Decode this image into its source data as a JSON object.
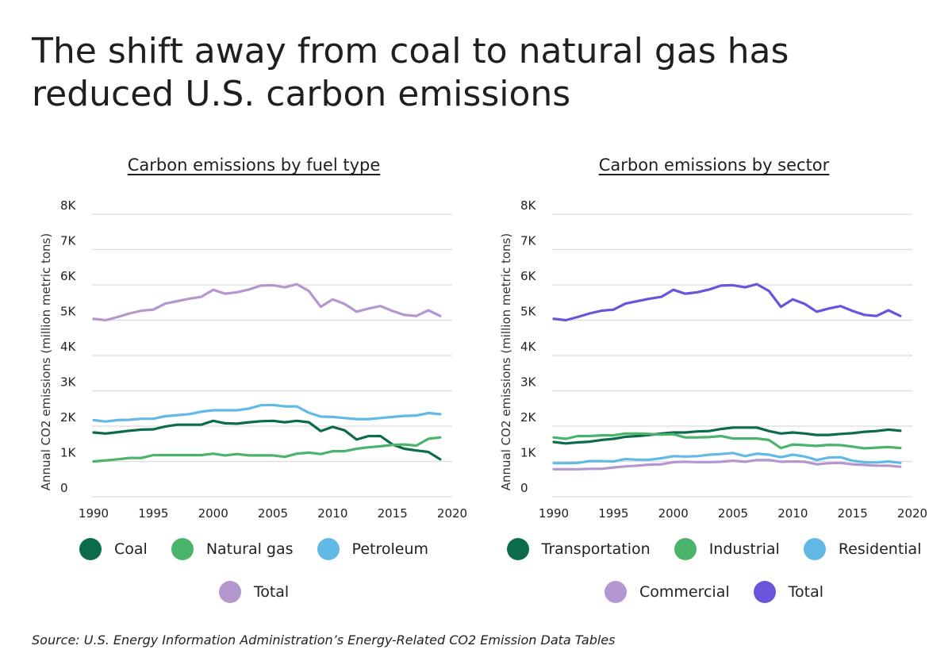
{
  "title": "The shift away from coal to natural gas has reduced U.S. carbon emissions",
  "source": "Source:  U.S. Energy Information Administration’s Energy-Related CO2 Emission Data Tables",
  "chart_data": [
    {
      "type": "line",
      "title": "Carbon emissions by fuel type",
      "ylabel": "Annual CO2 emissions (million metric tons)",
      "xlabel": "",
      "xlim": [
        1990,
        2020
      ],
      "ylim": [
        0,
        8000
      ],
      "x_ticks": [
        "1990",
        "1995",
        "2000",
        "2005",
        "2010",
        "2015",
        "2020"
      ],
      "y_ticks": [
        "0",
        "1K",
        "2K",
        "3K",
        "4K",
        "5K",
        "6K",
        "7K",
        "8K"
      ],
      "grid": true,
      "legend_position": "bottom",
      "x": [
        1990,
        1991,
        1992,
        1993,
        1994,
        1995,
        1996,
        1997,
        1998,
        1999,
        2000,
        2001,
        2002,
        2003,
        2004,
        2005,
        2006,
        2007,
        2008,
        2009,
        2010,
        2011,
        2012,
        2013,
        2014,
        2015,
        2016,
        2017,
        2018,
        2019
      ],
      "series": [
        {
          "name": "Coal",
          "color": "#0b6b4a",
          "values": [
            1820,
            1790,
            1830,
            1870,
            1900,
            1910,
            1990,
            2040,
            2040,
            2040,
            2150,
            2080,
            2070,
            2110,
            2140,
            2150,
            2110,
            2150,
            2110,
            1860,
            1980,
            1880,
            1620,
            1720,
            1720,
            1480,
            1360,
            1310,
            1270,
            1060
          ]
        },
        {
          "name": "Natural gas",
          "color": "#4ab46b",
          "values": [
            1000,
            1030,
            1060,
            1100,
            1100,
            1180,
            1180,
            1180,
            1180,
            1180,
            1220,
            1170,
            1210,
            1170,
            1170,
            1170,
            1130,
            1220,
            1250,
            1210,
            1290,
            1290,
            1360,
            1400,
            1430,
            1470,
            1480,
            1450,
            1640,
            1680
          ]
        },
        {
          "name": "Petroleum",
          "color": "#62b9e6",
          "values": [
            2170,
            2130,
            2170,
            2180,
            2210,
            2210,
            2280,
            2310,
            2340,
            2410,
            2450,
            2450,
            2450,
            2500,
            2590,
            2600,
            2560,
            2560,
            2380,
            2270,
            2260,
            2230,
            2200,
            2200,
            2230,
            2260,
            2290,
            2300,
            2370,
            2340
          ]
        },
        {
          "name": "Total",
          "color": "#b497cf",
          "values": [
            5040,
            5000,
            5090,
            5190,
            5270,
            5300,
            5470,
            5540,
            5610,
            5660,
            5860,
            5750,
            5790,
            5870,
            5980,
            5990,
            5930,
            6020,
            5830,
            5380,
            5590,
            5460,
            5240,
            5330,
            5400,
            5260,
            5150,
            5120,
            5280,
            5120
          ]
        }
      ]
    },
    {
      "type": "line",
      "title": "Carbon emissions by sector",
      "ylabel": "Annual CO2 emissions (million metric tons)",
      "xlabel": "",
      "xlim": [
        1990,
        2020
      ],
      "ylim": [
        0,
        8000
      ],
      "x_ticks": [
        "1990",
        "1995",
        "2000",
        "2005",
        "2010",
        "2015",
        "2020"
      ],
      "y_ticks": [
        "0",
        "1K",
        "2K",
        "3K",
        "4K",
        "5K",
        "6K",
        "7K",
        "8K"
      ],
      "grid": true,
      "legend_position": "bottom",
      "x": [
        1990,
        1991,
        1992,
        1993,
        1994,
        1995,
        1996,
        1997,
        1998,
        1999,
        2000,
        2001,
        2002,
        2003,
        2004,
        2005,
        2006,
        2007,
        2008,
        2009,
        2010,
        2011,
        2012,
        2013,
        2014,
        2015,
        2016,
        2017,
        2018,
        2019
      ],
      "series": [
        {
          "name": "Transportation",
          "color": "#0b6b4a",
          "values": [
            1550,
            1510,
            1540,
            1560,
            1610,
            1640,
            1700,
            1720,
            1750,
            1790,
            1820,
            1820,
            1850,
            1860,
            1920,
            1960,
            1960,
            1960,
            1860,
            1790,
            1820,
            1790,
            1750,
            1750,
            1780,
            1800,
            1840,
            1860,
            1900,
            1870
          ]
        },
        {
          "name": "Industrial",
          "color": "#4ab46b",
          "values": [
            1680,
            1640,
            1720,
            1720,
            1740,
            1740,
            1790,
            1790,
            1780,
            1760,
            1770,
            1680,
            1680,
            1690,
            1720,
            1650,
            1650,
            1650,
            1610,
            1380,
            1480,
            1460,
            1440,
            1470,
            1460,
            1420,
            1370,
            1390,
            1410,
            1380
          ]
        },
        {
          "name": "Residential",
          "color": "#62b9e6",
          "values": [
            950,
            950,
            960,
            1010,
            1010,
            1000,
            1070,
            1050,
            1050,
            1090,
            1150,
            1140,
            1150,
            1190,
            1210,
            1240,
            1150,
            1220,
            1190,
            1120,
            1190,
            1140,
            1040,
            1110,
            1120,
            1020,
            980,
            970,
            1000,
            960
          ]
        },
        {
          "name": "Commercial",
          "color": "#b497cf",
          "values": [
            780,
            780,
            780,
            790,
            790,
            830,
            860,
            880,
            910,
            920,
            980,
            990,
            980,
            980,
            990,
            1020,
            990,
            1040,
            1040,
            990,
            1000,
            990,
            920,
            950,
            960,
            920,
            900,
            880,
            880,
            850
          ]
        },
        {
          "name": "Total",
          "color": "#6a54dc",
          "values": [
            5040,
            5000,
            5090,
            5190,
            5270,
            5300,
            5470,
            5540,
            5610,
            5660,
            5860,
            5750,
            5790,
            5870,
            5980,
            5990,
            5930,
            6020,
            5830,
            5380,
            5590,
            5460,
            5240,
            5330,
            5400,
            5260,
            5150,
            5120,
            5280,
            5120
          ]
        }
      ]
    }
  ]
}
